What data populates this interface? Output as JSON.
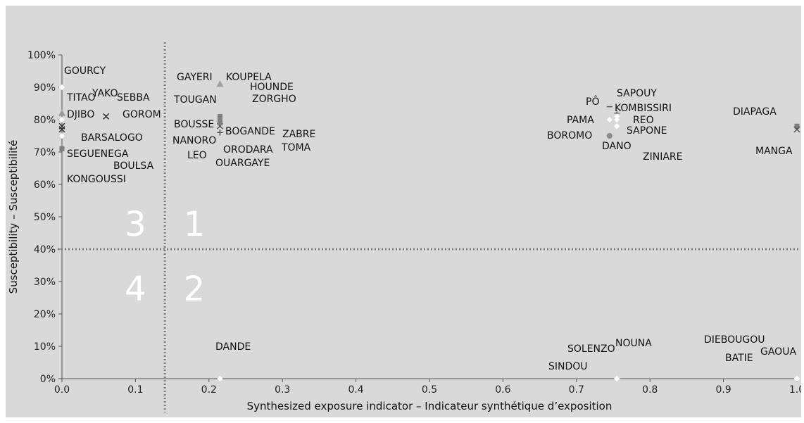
{
  "chart_data": {
    "type": "scatter",
    "title": "",
    "xlabel": "Synthesized exposure indicator – Indicateur synthétique d’exposition",
    "ylabel": "Susceptibility – Susceptibilité",
    "xlim": [
      0,
      1
    ],
    "ylim": [
      0,
      1
    ],
    "x_ticks": [
      "0.0",
      "0.1",
      "0.2",
      "0.3",
      "0.4",
      "0.5",
      "0.6",
      "0.7",
      "0.8",
      "0.9",
      "1.0"
    ],
    "y_ticks": [
      "0%",
      "10%",
      "20%",
      "30%",
      "40%",
      "50%",
      "60%",
      "70%",
      "80%",
      "90%",
      "100%"
    ],
    "grid": false,
    "thresholds": {
      "x": 0.14,
      "y": 0.4
    },
    "quadrant_labels": [
      {
        "text": "1",
        "x": 0.18,
        "y": 0.48
      },
      {
        "text": "2",
        "x": 0.18,
        "y": 0.28
      },
      {
        "text": "3",
        "x": 0.1,
        "y": 0.48
      },
      {
        "text": "4",
        "x": 0.1,
        "y": 0.28
      }
    ],
    "points": [
      {
        "name": "GOURCY",
        "x": 0.0,
        "y": 0.9,
        "marker": "diamond",
        "color": "#ffffff"
      },
      {
        "name": "TITAO",
        "x": 0.0,
        "y": 0.8,
        "marker": "diamond",
        "color": "#ffffff"
      },
      {
        "name": "DJIBO",
        "x": 0.0,
        "y": 0.78,
        "marker": "x",
        "color": "#333333"
      },
      {
        "name": "YAKO",
        "x": 0.06,
        "y": 0.81,
        "marker": "x",
        "color": "#222222"
      },
      {
        "name": "SEBBA",
        "x": 0.0,
        "y": 0.77,
        "marker": "x",
        "color": "#333333"
      },
      {
        "name": "GOROM",
        "x": 0.0,
        "y": 0.82,
        "marker": "triangle",
        "color": "#9a9a9a"
      },
      {
        "name": "BARSALOGO",
        "x": 0.0,
        "y": 0.75,
        "marker": "diamond",
        "color": "#ffffff"
      },
      {
        "name": "SEGUENEGA",
        "x": 0.0,
        "y": 0.71,
        "marker": "square",
        "color": "#808080"
      },
      {
        "name": "BOULSA",
        "x": 0.0,
        "y": 0.71,
        "marker": "square",
        "color": "#808080"
      },
      {
        "name": "KONGOUSSI",
        "x": 0.0,
        "y": 0.71,
        "marker": "square",
        "color": "#808080"
      },
      {
        "name": "GAYERI",
        "x": 0.215,
        "y": 0.91,
        "marker": "triangle",
        "color": "#a0a0a0"
      },
      {
        "name": "KOUPELA",
        "x": 0.215,
        "y": 0.91,
        "marker": "triangle",
        "color": "#a0a0a0"
      },
      {
        "name": "HOUNDE",
        "x": 0.215,
        "y": 0.81,
        "marker": "square",
        "color": "#808080"
      },
      {
        "name": "ZORGHO",
        "x": 0.215,
        "y": 0.8,
        "marker": "square",
        "color": "#808080"
      },
      {
        "name": "TOUGAN",
        "x": 0.215,
        "y": 0.8,
        "marker": "square",
        "color": "#808080"
      },
      {
        "name": "BOUSSE",
        "x": 0.215,
        "y": 0.79,
        "marker": "square",
        "color": "#808080"
      },
      {
        "name": "NANORO",
        "x": 0.215,
        "y": 0.78,
        "marker": "x",
        "color": "#555555"
      },
      {
        "name": "BOGANDE",
        "x": 0.215,
        "y": 0.8,
        "marker": "square",
        "color": "#808080"
      },
      {
        "name": "ZABRE",
        "x": 0.215,
        "y": 0.79,
        "marker": "square",
        "color": "#808080"
      },
      {
        "name": "LEO",
        "x": 0.215,
        "y": 0.76,
        "marker": "plus",
        "color": "#555555"
      },
      {
        "name": "ORODARA",
        "x": 0.215,
        "y": 0.76,
        "marker": "plus",
        "color": "#555555"
      },
      {
        "name": "TOMA",
        "x": 0.215,
        "y": 0.76,
        "marker": "plus",
        "color": "#555555"
      },
      {
        "name": "OUARGAYE",
        "x": 0.215,
        "y": 0.76,
        "marker": "plus",
        "color": "#555555"
      },
      {
        "name": "SAPOUY",
        "x": 0.745,
        "y": 0.84,
        "marker": "dash",
        "color": "#555555"
      },
      {
        "name": "PÔ",
        "x": 0.755,
        "y": 0.82,
        "marker": "plus",
        "color": "#555555"
      },
      {
        "name": "KOMBISSIRI",
        "x": 0.755,
        "y": 0.81,
        "marker": "diamond",
        "color": "#ffffff"
      },
      {
        "name": "REO",
        "x": 0.755,
        "y": 0.8,
        "marker": "diamond",
        "color": "#ffffff"
      },
      {
        "name": "PAMA",
        "x": 0.745,
        "y": 0.8,
        "marker": "diamond",
        "color": "#ffffff"
      },
      {
        "name": "SAPONE",
        "x": 0.755,
        "y": 0.78,
        "marker": "diamond",
        "color": "#ffffff"
      },
      {
        "name": "BOROMO",
        "x": 0.745,
        "y": 0.75,
        "marker": "circle",
        "color": "#8c8c8c"
      },
      {
        "name": "DANO",
        "x": 0.745,
        "y": 0.75,
        "marker": "circle",
        "color": "#8c8c8c"
      },
      {
        "name": "ZINIARE",
        "x": 0.755,
        "y": 0.78,
        "marker": "diamond",
        "color": "#ffffff"
      },
      {
        "name": "DIAPAGA",
        "x": 1.0,
        "y": 0.78,
        "marker": "square",
        "color": "#808080"
      },
      {
        "name": "MANGA",
        "x": 1.0,
        "y": 0.77,
        "marker": "x",
        "color": "#555555"
      },
      {
        "name": "DANDE",
        "x": 0.215,
        "y": 0.0,
        "marker": "diamond",
        "color": "#ffffff"
      },
      {
        "name": "SOLENZO",
        "x": 0.755,
        "y": 0.0,
        "marker": "diamond",
        "color": "#ffffff"
      },
      {
        "name": "NOUNA",
        "x": 0.755,
        "y": 0.0,
        "marker": "diamond",
        "color": "#ffffff"
      },
      {
        "name": "SINDOU",
        "x": 0.755,
        "y": 0.0,
        "marker": "diamond",
        "color": "#ffffff"
      },
      {
        "name": "DIEBOUGOU",
        "x": 1.0,
        "y": 0.0,
        "marker": "diamond",
        "color": "#ffffff"
      },
      {
        "name": "BATIE",
        "x": 1.0,
        "y": 0.0,
        "marker": "diamond",
        "color": "#ffffff"
      },
      {
        "name": "GAOUA",
        "x": 1.0,
        "y": 0.0,
        "marker": "diamond",
        "color": "#ffffff"
      }
    ]
  }
}
